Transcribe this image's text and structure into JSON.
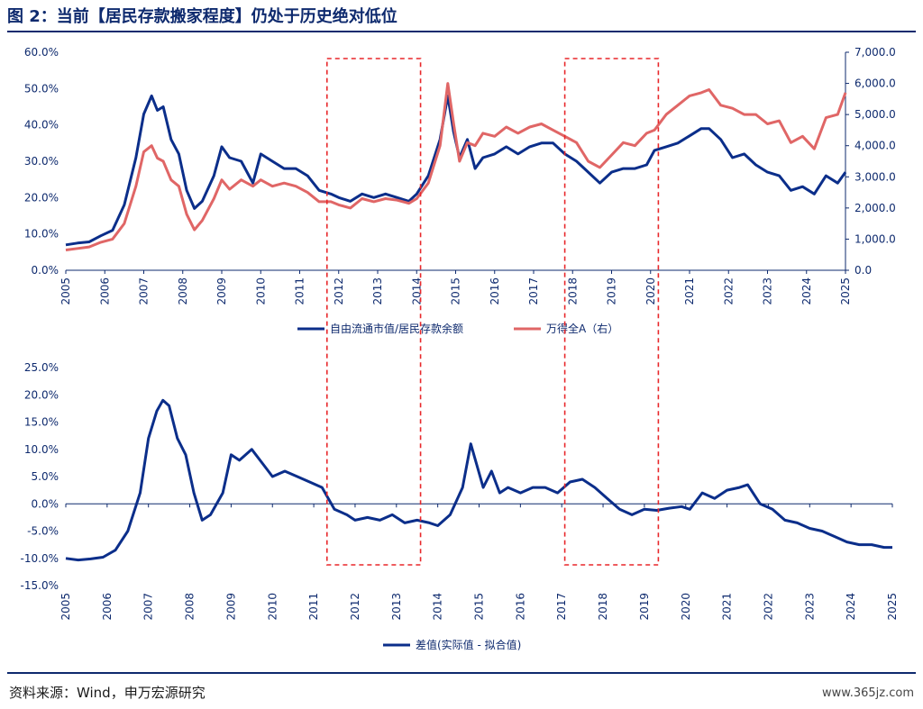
{
  "page": {
    "title": "图 2：当前【居民存款搬家程度】仍处于历史绝对低位",
    "source": "资料来源：Wind，申万宏源研究",
    "watermark": "www.365jz.com"
  },
  "colors": {
    "blue": "#0b2e8a",
    "red": "#e06666",
    "highlight": "#e8272a",
    "text": "#0e2a6e"
  },
  "chart_data": [
    {
      "type": "line",
      "x_ticks": [
        "2005",
        "2006",
        "2007",
        "2008",
        "2009",
        "2010",
        "2011",
        "2012",
        "2013",
        "2014",
        "2015",
        "2016",
        "2017",
        "2018",
        "2019",
        "2020",
        "2021",
        "2022",
        "2023",
        "2024",
        "2025"
      ],
      "y_left_ticks": [
        "0.0%",
        "10.0%",
        "20.0%",
        "30.0%",
        "40.0%",
        "50.0%",
        "60.0%"
      ],
      "y_right_ticks": [
        "0.0",
        "1,000.0",
        "2,000.0",
        "3,000.0",
        "4,000.0",
        "5,000.0",
        "6,000.0",
        "7,000.0"
      ],
      "ylim_left": [
        0,
        60
      ],
      "ylim_right": [
        0,
        7000
      ],
      "x_range": [
        2005,
        2025
      ],
      "legend_position": "bottom-center",
      "highlight_boxes": [
        [
          2011.7,
          2014.1
        ],
        [
          2017.8,
          2020.2
        ]
      ],
      "series": [
        {
          "name": "自由流通市值/居民存款余额",
          "axis": "left",
          "color": "#0b2e8a",
          "x": [
            2005,
            2005.3,
            2005.6,
            2005.9,
            2006.2,
            2006.5,
            2006.8,
            2007.0,
            2007.2,
            2007.35,
            2007.5,
            2007.7,
            2007.9,
            2008.1,
            2008.3,
            2008.5,
            2008.8,
            2009.0,
            2009.2,
            2009.5,
            2009.8,
            2010.0,
            2010.3,
            2010.6,
            2010.9,
            2011.2,
            2011.5,
            2011.8,
            2012.0,
            2012.3,
            2012.6,
            2012.9,
            2013.2,
            2013.5,
            2013.8,
            2014.0,
            2014.3,
            2014.6,
            2014.8,
            2014.95,
            2015.1,
            2015.3,
            2015.5,
            2015.7,
            2016.0,
            2016.3,
            2016.6,
            2016.9,
            2017.2,
            2017.5,
            2017.8,
            2018.1,
            2018.4,
            2018.7,
            2019.0,
            2019.3,
            2019.6,
            2019.9,
            2020.1,
            2020.4,
            2020.7,
            2021.0,
            2021.3,
            2021.5,
            2021.8,
            2022.1,
            2022.4,
            2022.7,
            2023.0,
            2023.3,
            2023.6,
            2023.9,
            2024.2,
            2024.5,
            2024.8,
            2025.0
          ],
          "values": [
            7,
            7.5,
            7.8,
            9.5,
            11,
            18,
            31,
            43,
            48,
            44,
            45,
            36,
            32,
            22,
            17,
            19,
            26,
            34,
            31,
            30,
            24,
            32,
            30,
            28,
            28,
            26,
            22,
            21,
            20,
            19,
            21,
            20,
            21,
            20,
            19,
            21,
            26,
            36,
            48,
            38,
            31,
            36,
            28,
            31,
            32,
            34,
            32,
            34,
            35,
            35,
            32,
            30,
            27,
            24,
            27,
            28,
            28,
            29,
            33,
            34,
            35,
            37,
            39,
            39,
            36,
            31,
            32,
            29,
            27,
            26,
            22,
            23,
            21,
            26,
            24,
            27
          ]
        },
        {
          "name": "万得全A（右）",
          "axis": "right",
          "color": "#e06666",
          "x": [
            2005,
            2005.3,
            2005.6,
            2005.9,
            2006.2,
            2006.5,
            2006.8,
            2007.0,
            2007.2,
            2007.35,
            2007.5,
            2007.7,
            2007.9,
            2008.1,
            2008.3,
            2008.5,
            2008.8,
            2009.0,
            2009.2,
            2009.5,
            2009.8,
            2010.0,
            2010.3,
            2010.6,
            2010.9,
            2011.2,
            2011.5,
            2011.8,
            2012.0,
            2012.3,
            2012.6,
            2012.9,
            2013.2,
            2013.5,
            2013.8,
            2014.0,
            2014.3,
            2014.6,
            2014.8,
            2014.95,
            2015.1,
            2015.3,
            2015.5,
            2015.7,
            2016.0,
            2016.3,
            2016.6,
            2016.9,
            2017.2,
            2017.5,
            2017.8,
            2018.1,
            2018.4,
            2018.7,
            2019.0,
            2019.3,
            2019.6,
            2019.9,
            2020.1,
            2020.4,
            2020.7,
            2021.0,
            2021.3,
            2021.5,
            2021.8,
            2022.1,
            2022.4,
            2022.7,
            2023.0,
            2023.3,
            2023.6,
            2023.9,
            2024.2,
            2024.5,
            2024.8,
            2025.0
          ],
          "values": [
            650,
            700,
            750,
            900,
            1000,
            1500,
            2700,
            3800,
            4000,
            3600,
            3500,
            2900,
            2700,
            1800,
            1300,
            1600,
            2300,
            2900,
            2600,
            2900,
            2700,
            2900,
            2700,
            2800,
            2700,
            2500,
            2200,
            2200,
            2100,
            2000,
            2300,
            2200,
            2300,
            2250,
            2150,
            2300,
            2800,
            4000,
            6000,
            4700,
            3500,
            4100,
            4000,
            4400,
            4300,
            4600,
            4400,
            4600,
            4700,
            4500,
            4300,
            4100,
            3500,
            3300,
            3700,
            4100,
            4000,
            4400,
            4500,
            5000,
            5300,
            5600,
            5700,
            5800,
            5300,
            5200,
            5000,
            5000,
            4700,
            4800,
            4100,
            4300,
            3900,
            4900,
            5000,
            5700
          ]
        }
      ]
    },
    {
      "type": "line",
      "x_ticks": [
        "2005",
        "2006",
        "2007",
        "2008",
        "2009",
        "2010",
        "2011",
        "2012",
        "2013",
        "2014",
        "2015",
        "2016",
        "2017",
        "2018",
        "2019",
        "2020",
        "2021",
        "2022",
        "2023",
        "2024",
        "2025"
      ],
      "y_ticks": [
        "25.0%",
        "20.0%",
        "15.0%",
        "10.0%",
        "5.0%",
        "0.0%",
        "-5.0%",
        "-10.0%",
        "-15.0%"
      ],
      "ylim": [
        -15,
        25
      ],
      "x_range": [
        2005,
        2025
      ],
      "legend_position": "bottom-center",
      "highlight_boxes": [
        [
          2011.3,
          2013.6
        ],
        [
          2017.2,
          2019.4
        ]
      ],
      "series": [
        {
          "name": "差值(实际值 - 拟合值)",
          "color": "#0b2e8a",
          "x": [
            2005,
            2005.3,
            2005.6,
            2005.9,
            2006.2,
            2006.5,
            2006.8,
            2007.0,
            2007.2,
            2007.35,
            2007.5,
            2007.7,
            2007.9,
            2008.1,
            2008.3,
            2008.5,
            2008.8,
            2009.0,
            2009.2,
            2009.5,
            2009.8,
            2010.0,
            2010.3,
            2010.6,
            2010.9,
            2011.2,
            2011.5,
            2011.8,
            2012.0,
            2012.3,
            2012.6,
            2012.9,
            2013.2,
            2013.5,
            2013.8,
            2014.0,
            2014.3,
            2014.6,
            2014.8,
            2014.95,
            2015.1,
            2015.3,
            2015.5,
            2015.7,
            2016.0,
            2016.3,
            2016.6,
            2016.9,
            2017.2,
            2017.5,
            2017.8,
            2018.1,
            2018.4,
            2018.7,
            2019.0,
            2019.3,
            2019.6,
            2019.9,
            2020.1,
            2020.4,
            2020.7,
            2021.0,
            2021.3,
            2021.5,
            2021.8,
            2022.1,
            2022.4,
            2022.7,
            2023.0,
            2023.3,
            2023.6,
            2023.9,
            2024.2,
            2024.5,
            2024.8,
            2025.0
          ],
          "values": [
            -10,
            -10.3,
            -10.1,
            -9.8,
            -8.5,
            -5,
            2,
            12,
            17,
            19,
            18,
            12,
            9,
            2,
            -3,
            -2,
            2,
            9,
            8,
            10,
            7,
            5,
            6,
            5,
            4,
            3,
            -1,
            -2,
            -3,
            -2.5,
            -3,
            -2,
            -3.5,
            -3,
            -3.5,
            -4,
            -2,
            3,
            11,
            7,
            3,
            6,
            2,
            3,
            2,
            3,
            3,
            2,
            4,
            4.5,
            3,
            1,
            -1,
            -2,
            -1,
            -1.2,
            -0.8,
            -0.5,
            -1,
            2,
            1,
            2.5,
            3,
            3.5,
            0,
            -1,
            -3,
            -3.5,
            -4.5,
            -5,
            -6,
            -7,
            -7.5,
            -7.5,
            -8,
            -8
          ]
        }
      ]
    }
  ]
}
